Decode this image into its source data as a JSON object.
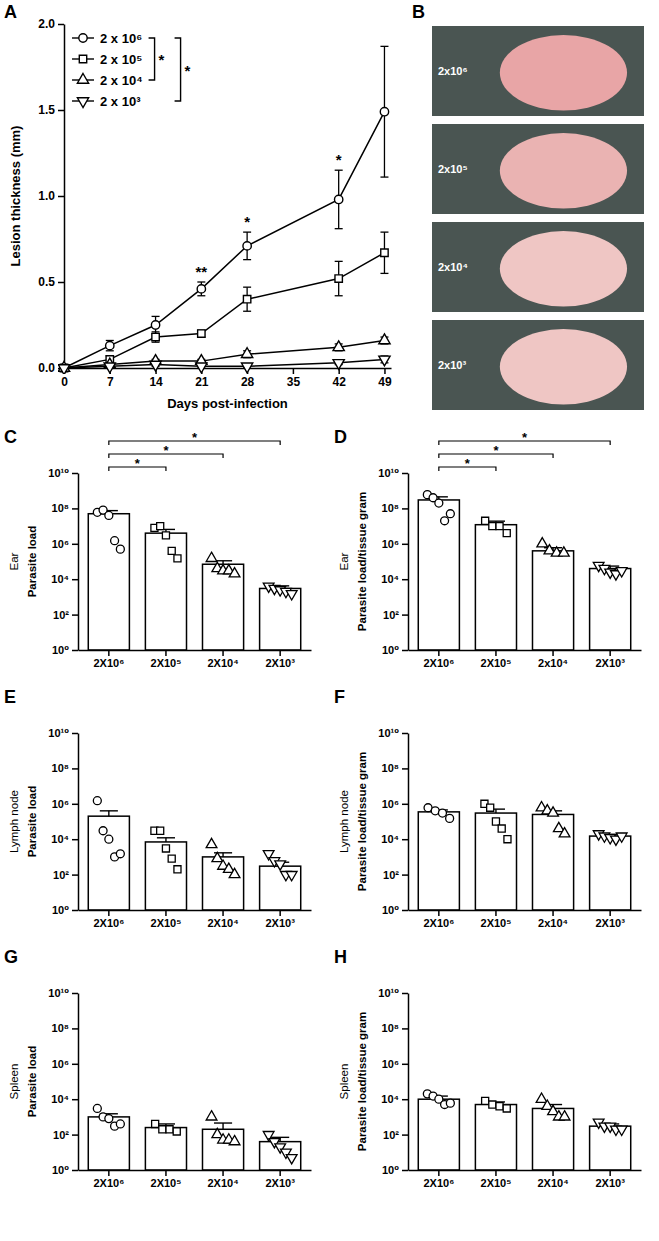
{
  "chart_data": [
    {
      "type": "line",
      "letter": "A",
      "xlabel": "Days post-infection",
      "ylabel": "Lesion thickness (mm)",
      "x": [
        0,
        7,
        14,
        21,
        28,
        42,
        49
      ],
      "xlim": [
        0,
        50
      ],
      "xticks": [
        0,
        7,
        14,
        21,
        28,
        35,
        42,
        49
      ],
      "ylim": [
        0,
        2
      ],
      "yticks": [
        {
          "value": 0,
          "label": "0.0"
        },
        {
          "value": 0.5,
          "label": "0.5"
        },
        {
          "value": 1,
          "label": "1.0"
        },
        {
          "value": 1.5,
          "label": "1.5"
        },
        {
          "value": 2,
          "label": "2.0"
        }
      ],
      "legend": "upper left",
      "series": [
        {
          "name": "2 x 10⁶",
          "color": "#000000",
          "marker": "circle",
          "values": [
            0,
            0.13,
            0.25,
            0.46,
            0.71,
            0.98,
            1.49
          ],
          "errors": [
            0,
            0.03,
            0.05,
            0.04,
            0.08,
            0.17,
            0.38
          ]
        },
        {
          "name": "2 x 10⁵",
          "color": "#000000",
          "marker": "square",
          "values": [
            0,
            0.05,
            0.18,
            0.2,
            0.4,
            0.52,
            0.67
          ],
          "errors": [
            0,
            0.02,
            0.03,
            0.02,
            0.07,
            0.1,
            0.12
          ]
        },
        {
          "name": "2 x 10⁴",
          "color": "#000000",
          "marker": "triangle-up",
          "values": [
            0,
            0.02,
            0.04,
            0.04,
            0.08,
            0.12,
            0.16
          ],
          "errors": [
            0,
            0.01,
            0.01,
            0.01,
            0.02,
            0.02,
            0.02
          ]
        },
        {
          "name": "2 x 10³",
          "color": "#000000",
          "marker": "triangle-down",
          "values": [
            0,
            0.01,
            0.02,
            0.01,
            0.01,
            0.03,
            0.05
          ],
          "errors": [
            0,
            0.01,
            0.01,
            0.01,
            0.01,
            0.01,
            0.02
          ]
        }
      ],
      "comparisons": [
        {
          "between": [
            0,
            2
          ],
          "label": "*"
        },
        {
          "between": [
            0,
            3
          ],
          "label": "*"
        }
      ],
      "annotations": [
        {
          "x": 21,
          "label": "**"
        },
        {
          "x": 28,
          "label": "*"
        },
        {
          "x": 42,
          "label": "*"
        }
      ]
    },
    {
      "type": "bar",
      "letter": "C",
      "ylabel_group": "Ear",
      "ylabel": "Parasite load",
      "log": "y",
      "color": "#ffffff",
      "categories": [
        "2X10⁶",
        "2X10⁵",
        "2X10⁴",
        "2X10³"
      ],
      "values": [
        50000000.0,
        4000000.0,
        70000.0,
        3000.0
      ],
      "errors": [
        25000000.0,
        2500000.0,
        40000.0,
        1200.0
      ],
      "points": [
        {
          "marker": "circle",
          "values": [
            60000000.0,
            80000000.0,
            40000000.0,
            1500000.0,
            500000.0
          ]
        },
        {
          "marker": "square",
          "values": [
            8000000.0,
            10000000.0,
            3000000.0,
            400000.0,
            150000.0
          ]
        },
        {
          "marker": "triangle-up",
          "values": [
            150000.0,
            40000.0,
            30000.0,
            30000.0,
            20000.0
          ]
        },
        {
          "marker": "triangle-down",
          "values": [
            4000.0,
            3000.0,
            2500.0,
            2000.0,
            1500.0
          ]
        }
      ],
      "ylim": [
        1,
        10000000000.0
      ],
      "yticks": [
        {
          "value": 1,
          "label": "10⁰"
        },
        {
          "value": 100,
          "label": "10²"
        },
        {
          "value": 10000.0,
          "label": "10⁴"
        },
        {
          "value": 1000000.0,
          "label": "10⁶"
        },
        {
          "value": 100000000.0,
          "label": "10⁸"
        },
        {
          "value": 10000000000.0,
          "label": "10¹⁰"
        }
      ],
      "comparisons": [
        {
          "between": [
            0,
            1
          ],
          "label": "*"
        },
        {
          "between": [
            0,
            2
          ],
          "label": "*"
        },
        {
          "between": [
            0,
            3
          ],
          "label": "*"
        }
      ]
    },
    {
      "type": "bar",
      "letter": "D",
      "ylabel_group": "Ear",
      "ylabel": "Parasite load/tissue gram",
      "log": "y",
      "color": "#ffffff",
      "categories": [
        "2X10⁶",
        "2X10⁵",
        "2x10⁴",
        "2X10³"
      ],
      "values": [
        300000000.0,
        12000000.0,
        400000.0,
        40000.0
      ],
      "errors": [
        150000000.0,
        7000000.0,
        200000.0,
        15000.0
      ],
      "points": [
        {
          "marker": "circle",
          "values": [
            600000000.0,
            400000000.0,
            200000000.0,
            20000000.0,
            50000000.0
          ]
        },
        {
          "marker": "square",
          "values": [
            20000000.0,
            10000000.0,
            10000000.0,
            4000000.0
          ]
        },
        {
          "marker": "triangle-up",
          "values": [
            1000000.0,
            400000.0,
            300000.0,
            300000.0
          ]
        },
        {
          "marker": "triangle-down",
          "values": [
            60000.0,
            40000.0,
            25000.0,
            20000.0,
            30000.0
          ]
        }
      ],
      "ylim": [
        1,
        10000000000.0
      ],
      "yticks": [
        {
          "value": 1,
          "label": "10⁰"
        },
        {
          "value": 100,
          "label": "10²"
        },
        {
          "value": 10000.0,
          "label": "10⁴"
        },
        {
          "value": 1000000.0,
          "label": "10⁶"
        },
        {
          "value": 100000000.0,
          "label": "10⁸"
        },
        {
          "value": 10000000000.0,
          "label": "10¹⁰"
        }
      ],
      "comparisons": [
        {
          "between": [
            0,
            1
          ],
          "label": "*"
        },
        {
          "between": [
            0,
            2
          ],
          "label": "*"
        },
        {
          "between": [
            0,
            3
          ],
          "label": "*"
        }
      ]
    },
    {
      "type": "bar",
      "letter": "E",
      "ylabel_group": "Lymph node",
      "ylabel": "Parasite load",
      "log": "y",
      "color": "#ffffff",
      "categories": [
        "2X10⁶",
        "2X10⁵",
        "2X10⁴",
        "2X10³"
      ],
      "values": [
        200000.0,
        7000.0,
        1000.0,
        300.0
      ],
      "errors": [
        200000.0,
        5000.0,
        700.0,
        200.0
      ],
      "points": [
        {
          "marker": "circle",
          "values": [
            1500000.0,
            30000.0,
            10000.0,
            1000.0,
            1500.0
          ]
        },
        {
          "marker": "square",
          "values": [
            30000.0,
            30000.0,
            3000.0,
            800.0,
            200.0
          ]
        },
        {
          "marker": "triangle-up",
          "values": [
            5000.0,
            800.0,
            300.0,
            200.0,
            100.0
          ]
        },
        {
          "marker": "triangle-down",
          "values": [
            1500.0,
            600.0,
            400.0,
            100.0,
            100.0
          ]
        }
      ],
      "ylim": [
        1,
        10000000000.0
      ],
      "yticks": [
        {
          "value": 1,
          "label": "10⁰"
        },
        {
          "value": 100,
          "label": "10²"
        },
        {
          "value": 10000.0,
          "label": "10⁴"
        },
        {
          "value": 1000000.0,
          "label": "10⁶"
        },
        {
          "value": 100000000.0,
          "label": "10⁸"
        },
        {
          "value": 10000000000.0,
          "label": "10¹⁰"
        }
      ]
    },
    {
      "type": "bar",
      "letter": "F",
      "ylabel_group": "Lymph node",
      "ylabel": "Parasite load/tissue gram",
      "log": "y",
      "color": "#ffffff",
      "categories": [
        "2X10⁶",
        "2X10⁵",
        "2x10⁴",
        "2X10³"
      ],
      "values": [
        350000.0,
        300000.0,
        250000.0,
        15000.0
      ],
      "errors": [
        100000.0,
        200000.0,
        150000.0,
        4000.0
      ],
      "points": [
        {
          "marker": "circle",
          "values": [
            600000.0,
            400000.0,
            300000.0,
            150000.0
          ]
        },
        {
          "marker": "square",
          "values": [
            1000000.0,
            600000.0,
            100000.0,
            40000.0,
            10000.0
          ]
        },
        {
          "marker": "triangle-up",
          "values": [
            600000.0,
            400000.0,
            300000.0,
            40000.0,
            20000.0
          ]
        },
        {
          "marker": "triangle-down",
          "values": [
            20000.0,
            15000.0,
            12000.0,
            10000.0,
            15000.0
          ]
        }
      ],
      "ylim": [
        1,
        10000000000.0
      ],
      "yticks": [
        {
          "value": 1,
          "label": "10⁰"
        },
        {
          "value": 100,
          "label": "10²"
        },
        {
          "value": 10000.0,
          "label": "10⁴"
        },
        {
          "value": 1000000.0,
          "label": "10⁶"
        },
        {
          "value": 100000000.0,
          "label": "10⁸"
        },
        {
          "value": 10000000000.0,
          "label": "10¹⁰"
        }
      ]
    },
    {
      "type": "bar",
      "letter": "G",
      "ylabel_group": "Spleen",
      "ylabel": "Parasite load",
      "log": "y",
      "color": "#ffffff",
      "categories": [
        "2X10⁶",
        "2X10⁵",
        "2X10⁴",
        "2X10³"
      ],
      "values": [
        1000.0,
        250.0,
        200.0,
        40
      ],
      "errors": [
        500.0,
        150.0,
        250.0,
        30
      ],
      "points": [
        {
          "marker": "circle",
          "values": [
            3000.0,
            1000.0,
            800.0,
            300.0,
            400.0
          ]
        },
        {
          "marker": "square",
          "values": [
            400.0,
            200.0,
            200.0,
            150.0
          ]
        },
        {
          "marker": "triangle-up",
          "values": [
            1000.0,
            100.0,
            50,
            50,
            40
          ]
        },
        {
          "marker": "triangle-down",
          "values": [
            100.0,
            40,
            20,
            10,
            5
          ]
        }
      ],
      "ylim": [
        1,
        10000000000.0
      ],
      "yticks": [
        {
          "value": 1,
          "label": "10⁰"
        },
        {
          "value": 100,
          "label": "10²"
        },
        {
          "value": 10000.0,
          "label": "10⁴"
        },
        {
          "value": 1000000.0,
          "label": "10⁶"
        },
        {
          "value": 100000000.0,
          "label": "10⁸"
        },
        {
          "value": 10000000000.0,
          "label": "10¹⁰"
        }
      ]
    },
    {
      "type": "bar",
      "letter": "H",
      "ylabel_group": "Spleen",
      "ylabel": "Parasite load/tissue gram",
      "log": "y",
      "color": "#ffffff",
      "categories": [
        "2X10⁶",
        "2X10⁵",
        "2X10⁴",
        "2X10³"
      ],
      "values": [
        10000.0,
        5000.0,
        3000.0,
        300.0
      ],
      "errors": [
        5000.0,
        2000.0,
        2000.0,
        100.0
      ],
      "points": [
        {
          "marker": "circle",
          "values": [
            20000.0,
            15000.0,
            10000.0,
            5000.0,
            6000.0
          ]
        },
        {
          "marker": "square",
          "values": [
            8000.0,
            5000.0,
            4000.0,
            3000.0
          ]
        },
        {
          "marker": "triangle-up",
          "values": [
            10000.0,
            4000.0,
            2000.0,
            1000.0,
            1000.0
          ]
        },
        {
          "marker": "triangle-down",
          "values": [
            500.0,
            300.0,
            300.0,
            200.0,
            200.0
          ]
        }
      ],
      "ylim": [
        1,
        10000000000.0
      ],
      "yticks": [
        {
          "value": 1,
          "label": "10⁰"
        },
        {
          "value": 100,
          "label": "10²"
        },
        {
          "value": 10000.0,
          "label": "10⁴"
        },
        {
          "value": 1000000.0,
          "label": "10⁶"
        },
        {
          "value": 100000000.0,
          "label": "10⁸"
        },
        {
          "value": 10000000000.0,
          "label": "10¹⁰"
        }
      ]
    }
  ],
  "photo_panel": {
    "letter": "B",
    "labels": [
      "2x10⁶",
      "2x10⁵",
      "2x10⁴",
      "2x10³"
    ]
  }
}
